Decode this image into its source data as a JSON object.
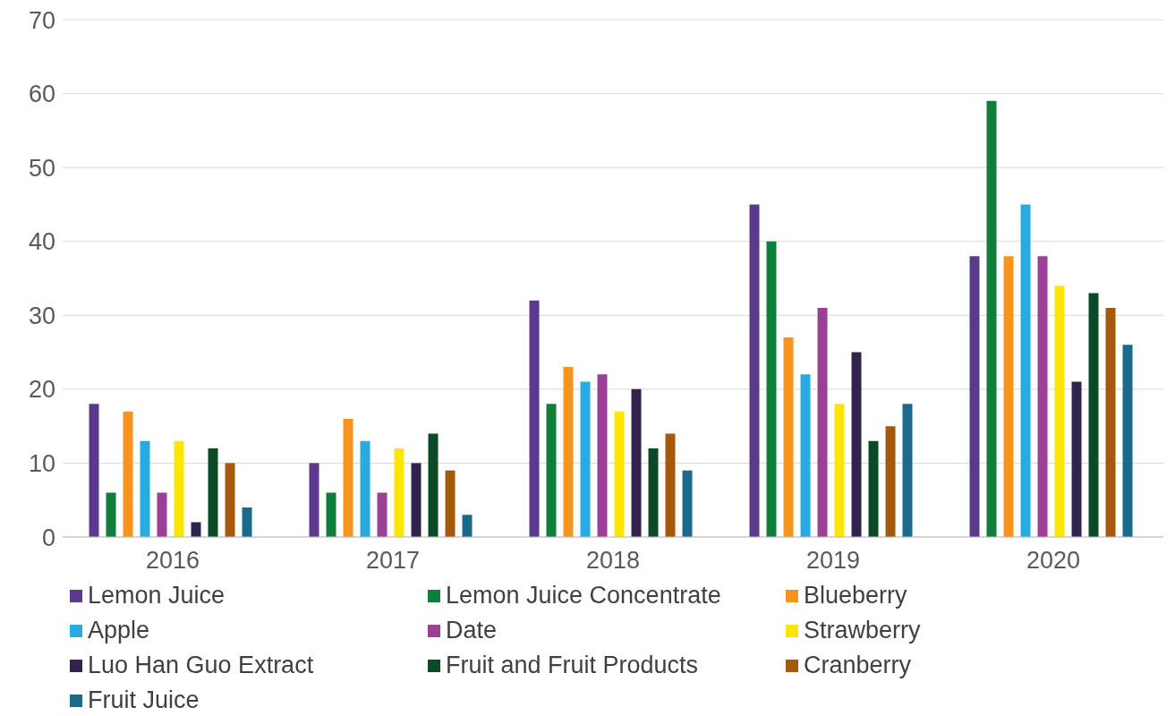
{
  "chart_data": {
    "type": "bar",
    "categories": [
      "2016",
      "2017",
      "2018",
      "2019",
      "2020"
    ],
    "series": [
      {
        "name": "Lemon Juice",
        "color": "#5b3a8e",
        "values": [
          18,
          10,
          32,
          45,
          38
        ]
      },
      {
        "name": "Lemon Juice Concentrate",
        "color": "#0e7e3a",
        "values": [
          6,
          6,
          18,
          40,
          59
        ]
      },
      {
        "name": "Blueberry",
        "color": "#f7941d",
        "values": [
          17,
          16,
          23,
          27,
          38
        ]
      },
      {
        "name": "Apple",
        "color": "#29abe2",
        "values": [
          13,
          13,
          21,
          22,
          45
        ]
      },
      {
        "name": "Date",
        "color": "#9b3f97",
        "values": [
          6,
          6,
          22,
          31,
          38
        ]
      },
      {
        "name": "Strawberry",
        "color": "#ffe600",
        "values": [
          13,
          12,
          17,
          18,
          34
        ]
      },
      {
        "name": "Luo Han Guo Extract",
        "color": "#32224e",
        "values": [
          2,
          10,
          20,
          25,
          21
        ]
      },
      {
        "name": "Fruit and Fruit Products",
        "color": "#0b4a26",
        "values": [
          12,
          14,
          12,
          13,
          33
        ]
      },
      {
        "name": "Cranberry",
        "color": "#a45a0a",
        "values": [
          10,
          9,
          14,
          15,
          31
        ]
      },
      {
        "name": "Fruit Juice",
        "color": "#1b6a8c",
        "values": [
          4,
          3,
          9,
          18,
          26
        ]
      }
    ],
    "ylim": [
      0,
      70
    ],
    "yticks": [
      0,
      10,
      20,
      30,
      40,
      50,
      60,
      70
    ],
    "grid": "y",
    "legend": "bottom"
  }
}
